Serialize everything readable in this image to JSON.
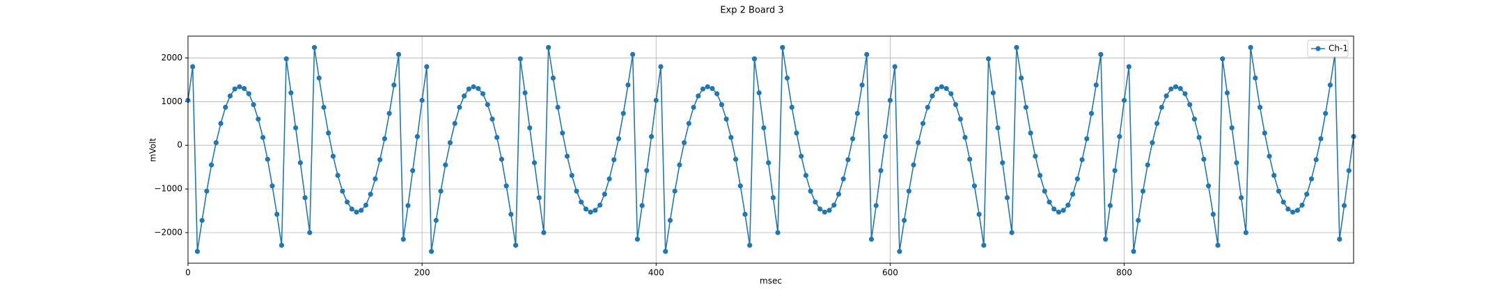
{
  "chart_data": {
    "type": "line",
    "title": "Exp 2 Board 3",
    "x_label": "msec",
    "y_label": "mVolt",
    "x": [
      0,
      4,
      8,
      12,
      16,
      20,
      24,
      28,
      32,
      36,
      40,
      44,
      48,
      52,
      56,
      60,
      64,
      68,
      72,
      76,
      80,
      84,
      88,
      92,
      96,
      100,
      104,
      108,
      112,
      116,
      120,
      124,
      128,
      132,
      136,
      140,
      144,
      148,
      152,
      156,
      160,
      164,
      168,
      172,
      176,
      180,
      184,
      188,
      192,
      196,
      200,
      204,
      208,
      212,
      216,
      220,
      224,
      228,
      232,
      236,
      240,
      244,
      248,
      252,
      256,
      260,
      264,
      268,
      272,
      276,
      280,
      284,
      288,
      292,
      296,
      300,
      304,
      308,
      312,
      316,
      320,
      324,
      328,
      332,
      336,
      340,
      344,
      348,
      352,
      356,
      360,
      364,
      368,
      372,
      376,
      380,
      384,
      388,
      392,
      396,
      400,
      404,
      408,
      412,
      416,
      420,
      424,
      428,
      432,
      436,
      440,
      444,
      448,
      452,
      456,
      460,
      464,
      468,
      472,
      476,
      480,
      484,
      488,
      492,
      496,
      500,
      504,
      508,
      512,
      516,
      520,
      524,
      528,
      532,
      536,
      540,
      544,
      548,
      552,
      556,
      560,
      564,
      568,
      572,
      576,
      580,
      584,
      588,
      592,
      596,
      600,
      604,
      608,
      612,
      616,
      620,
      624,
      628,
      632,
      636,
      640,
      644,
      648,
      652,
      656,
      660,
      664,
      668,
      672,
      676,
      680,
      684,
      688,
      692,
      696,
      700,
      704,
      708,
      712,
      716,
      720,
      724,
      728,
      732,
      736,
      740,
      744,
      748,
      752,
      756,
      760,
      764,
      768,
      772,
      776,
      780,
      784,
      788,
      792,
      796,
      800,
      804,
      808,
      812,
      816,
      820,
      824,
      828,
      832,
      836,
      840,
      844,
      848,
      852,
      856,
      860,
      864,
      868,
      872,
      876,
      880,
      884,
      888,
      892,
      896,
      900,
      904,
      908,
      912,
      916,
      920,
      924,
      928,
      932,
      936,
      940,
      944,
      948,
      952,
      956,
      960,
      964,
      968,
      972,
      976,
      980,
      984,
      988,
      992,
      996
    ],
    "series": [
      {
        "name": "Ch-1",
        "color": "#1f77b4",
        "values": [
          1030,
          1800,
          -2430,
          -1720,
          -1050,
          -450,
          60,
          500,
          870,
          1130,
          1290,
          1340,
          1300,
          1180,
          930,
          600,
          180,
          -320,
          -930,
          -1580,
          -2290,
          1980,
          1200,
          400,
          -400,
          -1200,
          -2000,
          2240,
          1540,
          870,
          280,
          -250,
          -690,
          -1050,
          -1300,
          -1460,
          -1530,
          -1490,
          -1370,
          -1120,
          -770,
          -330,
          150,
          730,
          1380,
          2080,
          -2150,
          -1380,
          -580,
          200,
          1030,
          1800,
          -2430,
          -1720,
          -1050,
          -450,
          60,
          500,
          870,
          1130,
          1290,
          1340,
          1300,
          1180,
          930,
          600,
          180,
          -320,
          -930,
          -1580,
          -2290,
          1980,
          1200,
          400,
          -400,
          -1200,
          -2000,
          2240,
          1540,
          870,
          280,
          -250,
          -690,
          -1050,
          -1300,
          -1460,
          -1530,
          -1490,
          -1370,
          -1120,
          -770,
          -330,
          150,
          730,
          1380,
          2080,
          -2150,
          -1380,
          -580,
          200,
          1030,
          1800,
          -2430,
          -1720,
          -1050,
          -450,
          60,
          500,
          870,
          1130,
          1290,
          1340,
          1300,
          1180,
          930,
          600,
          180,
          -320,
          -930,
          -1580,
          -2290,
          1980,
          1200,
          400,
          -400,
          -1200,
          -2000,
          2240,
          1540,
          870,
          280,
          -250,
          -690,
          -1050,
          -1300,
          -1460,
          -1530,
          -1490,
          -1370,
          -1120,
          -770,
          -330,
          150,
          730,
          1380,
          2080,
          -2150,
          -1380,
          -580,
          200,
          1030,
          1800,
          -2430,
          -1720,
          -1050,
          -450,
          60,
          500,
          870,
          1130,
          1290,
          1340,
          1300,
          1180,
          930,
          600,
          180,
          -320,
          -930,
          -1580,
          -2290,
          1980,
          1200,
          400,
          -400,
          -1200,
          -2000,
          2240,
          1540,
          870,
          280,
          -250,
          -690,
          -1050,
          -1300,
          -1460,
          -1530,
          -1490,
          -1370,
          -1120,
          -770,
          -330,
          150,
          730,
          1380,
          2080,
          -2150,
          -1380,
          -580,
          200,
          1030,
          1800,
          -2430,
          -1720,
          -1050,
          -450,
          60,
          500,
          870,
          1130,
          1290,
          1340,
          1300,
          1180,
          930,
          600,
          180,
          -320,
          -930,
          -1580,
          -2290,
          1980,
          1200,
          400,
          -400,
          -1200,
          -2000,
          2240,
          1540,
          870,
          280,
          -250,
          -690,
          -1050,
          -1300,
          -1460,
          -1530,
          -1490,
          -1370,
          -1120,
          -770,
          -330,
          150,
          730,
          1380,
          2080,
          -2150,
          -1380,
          -580,
          200
        ]
      }
    ],
    "xlim": [
      0,
      996
    ],
    "ylim": [
      -2700,
      2500
    ],
    "xticks": [
      0,
      200,
      400,
      600,
      800
    ],
    "yticks": [
      {
        "value": -2000,
        "label": "−2000"
      },
      {
        "value": -1000,
        "label": "−1000"
      },
      0,
      1000,
      2000
    ],
    "grid": true,
    "legend": "upper right"
  }
}
